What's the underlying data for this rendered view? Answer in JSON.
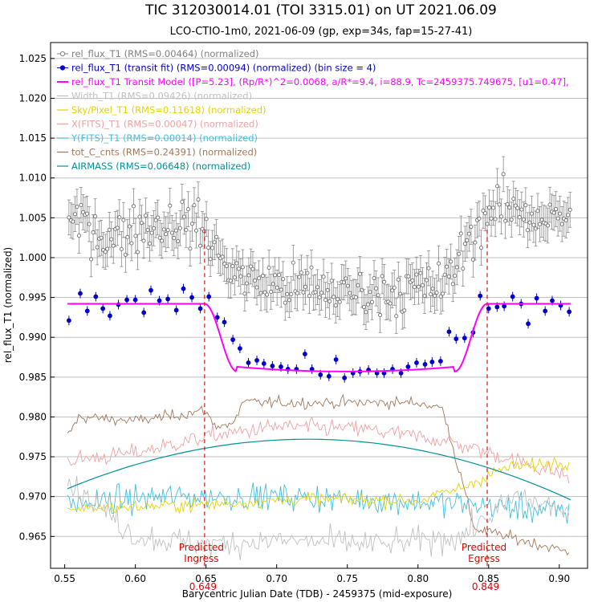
{
  "chart_data": {
    "type": "scatter",
    "title": "TIC 312030014.01 (TOI 3315.01) on UT 2021.06.09",
    "subtitle": "LCO-CTIO-1m0, 2021-06-09 (gp, exp=34s, fap=15-27-41)",
    "xlabel": "Barycentric Julian Date (TDB) - 2459375 (mid-exposure)",
    "ylabel": "rel_flux_T1 (normalized)",
    "xlim": [
      0.54,
      0.92
    ],
    "ylim": [
      0.961,
      1.027
    ],
    "x_ticks": [
      "0.55",
      "0.60",
      "0.65",
      "0.70",
      "0.75",
      "0.80",
      "0.85",
      "0.90"
    ],
    "y_ticks": [
      "0.965",
      "0.970",
      "0.975",
      "0.980",
      "0.985",
      "0.990",
      "0.995",
      "1.000",
      "1.005",
      "1.010",
      "1.015",
      "1.020",
      "1.025"
    ],
    "grid": true,
    "legend_position": "top-left",
    "legend": [
      {
        "label": "rel_flux_T1 (RMS=0.00464) (normalized)",
        "color": "#808080",
        "marker": "open-circle"
      },
      {
        "label": "rel_flux_T1 (transit fit) (RMS=0.00094) (normalized) (bin size = 4)",
        "color": "#0000c8",
        "marker": "filled-circle"
      },
      {
        "label": "rel_flux_T1 Transit Model ([P=5.23], (Rp/R*)^2=0.0068, a/R*=9.4, i=88.9, Tc=2459375.749675, [u1=0.47],",
        "color": "#ff00ff",
        "marker": "line"
      },
      {
        "label": "Width_T1 (RMS=0.09426) (normalized)",
        "color": "#c0c0c0",
        "marker": "line"
      },
      {
        "label": "Sky/Pixel_T1 (RMS=0.11618) (normalized)",
        "color": "#e6d200",
        "marker": "line"
      },
      {
        "label": "X(FITS)_T1 (RMS=0.00047) (normalized)",
        "color": "#f0a0a0",
        "marker": "line"
      },
      {
        "label": "Y(FITS)_T1 (RMS=0.00014) (normalized)",
        "color": "#40c0e0",
        "marker": "line"
      },
      {
        "label": "tot_C_cnts (RMS=0.24391) (normalized)",
        "color": "#a0785a",
        "marker": "line"
      },
      {
        "label": "AIRMASS (RMS=0.06648) (normalized)",
        "color": "#00909a",
        "marker": "line"
      }
    ],
    "annotations": [
      {
        "text_lines": [
          "Predicted",
          "Ingress"
        ],
        "x": 0.649,
        "value_label": "0.649",
        "color": "#e00000"
      },
      {
        "text_lines": [
          "Predicted",
          "Egress"
        ],
        "x": 0.849,
        "value_label": "0.849",
        "color": "#e00000"
      }
    ],
    "transit_model": {
      "baseline": 0.9942,
      "depth_level": 0.9857,
      "ingress_start": 0.649,
      "ingress_end": 0.672,
      "egress_start": 0.826,
      "egress_end": 0.849,
      "x_start": 0.552,
      "x_end": 0.908
    },
    "binned_points": [
      {
        "x": 0.553,
        "y": 0.9921
      },
      {
        "x": 0.561,
        "y": 0.9955
      },
      {
        "x": 0.566,
        "y": 0.9933
      },
      {
        "x": 0.572,
        "y": 0.9951
      },
      {
        "x": 0.577,
        "y": 0.9936
      },
      {
        "x": 0.582,
        "y": 0.9927
      },
      {
        "x": 0.588,
        "y": 0.9941
      },
      {
        "x": 0.594,
        "y": 0.9947
      },
      {
        "x": 0.6,
        "y": 0.9947
      },
      {
        "x": 0.606,
        "y": 0.9931
      },
      {
        "x": 0.611,
        "y": 0.9959
      },
      {
        "x": 0.617,
        "y": 0.9946
      },
      {
        "x": 0.623,
        "y": 0.9948
      },
      {
        "x": 0.629,
        "y": 0.9934
      },
      {
        "x": 0.634,
        "y": 0.9961
      },
      {
        "x": 0.64,
        "y": 0.995
      },
      {
        "x": 0.646,
        "y": 0.9936
      },
      {
        "x": 0.652,
        "y": 0.9951
      },
      {
        "x": 0.658,
        "y": 0.9925
      },
      {
        "x": 0.663,
        "y": 0.9919
      },
      {
        "x": 0.669,
        "y": 0.9897
      },
      {
        "x": 0.674,
        "y": 0.9886
      },
      {
        "x": 0.68,
        "y": 0.9868
      },
      {
        "x": 0.686,
        "y": 0.9871
      },
      {
        "x": 0.691,
        "y": 0.9867
      },
      {
        "x": 0.697,
        "y": 0.9864
      },
      {
        "x": 0.703,
        "y": 0.9863
      },
      {
        "x": 0.708,
        "y": 0.986
      },
      {
        "x": 0.714,
        "y": 0.986
      },
      {
        "x": 0.72,
        "y": 0.9879
      },
      {
        "x": 0.725,
        "y": 0.986
      },
      {
        "x": 0.731,
        "y": 0.9853
      },
      {
        "x": 0.737,
        "y": 0.9851
      },
      {
        "x": 0.742,
        "y": 0.9872
      },
      {
        "x": 0.748,
        "y": 0.9849
      },
      {
        "x": 0.754,
        "y": 0.9855
      },
      {
        "x": 0.759,
        "y": 0.9857
      },
      {
        "x": 0.765,
        "y": 0.9859
      },
      {
        "x": 0.771,
        "y": 0.9855
      },
      {
        "x": 0.776,
        "y": 0.9855
      },
      {
        "x": 0.782,
        "y": 0.986
      },
      {
        "x": 0.788,
        "y": 0.9855
      },
      {
        "x": 0.793,
        "y": 0.9863
      },
      {
        "x": 0.799,
        "y": 0.9868
      },
      {
        "x": 0.805,
        "y": 0.9866
      },
      {
        "x": 0.81,
        "y": 0.9869
      },
      {
        "x": 0.816,
        "y": 0.987
      },
      {
        "x": 0.822,
        "y": 0.9907
      },
      {
        "x": 0.827,
        "y": 0.9898
      },
      {
        "x": 0.833,
        "y": 0.9899
      },
      {
        "x": 0.839,
        "y": 0.9906
      },
      {
        "x": 0.844,
        "y": 0.9952
      },
      {
        "x": 0.85,
        "y": 0.9936
      },
      {
        "x": 0.856,
        "y": 0.9938
      },
      {
        "x": 0.861,
        "y": 0.9939
      },
      {
        "x": 0.867,
        "y": 0.9951
      },
      {
        "x": 0.873,
        "y": 0.9942
      },
      {
        "x": 0.878,
        "y": 0.9917
      },
      {
        "x": 0.884,
        "y": 0.9949
      },
      {
        "x": 0.89,
        "y": 0.9933
      },
      {
        "x": 0.895,
        "y": 0.9946
      },
      {
        "x": 0.901,
        "y": 0.994
      },
      {
        "x": 0.907,
        "y": 0.9932
      }
    ],
    "unbinned_trend": [
      {
        "x": 0.552,
        "y": 1.0035
      },
      {
        "x": 0.565,
        "y": 1.005
      },
      {
        "x": 0.58,
        "y": 1.002
      },
      {
        "x": 0.6,
        "y": 1.004
      },
      {
        "x": 0.62,
        "y": 1.004
      },
      {
        "x": 0.64,
        "y": 1.0045
      },
      {
        "x": 0.65,
        "y": 1.003
      },
      {
        "x": 0.66,
        "y": 1.0
      },
      {
        "x": 0.675,
        "y": 0.9975
      },
      {
        "x": 0.7,
        "y": 0.9965
      },
      {
        "x": 0.75,
        "y": 0.9955
      },
      {
        "x": 0.79,
        "y": 0.996
      },
      {
        "x": 0.82,
        "y": 0.9965
      },
      {
        "x": 0.835,
        "y": 1.002
      },
      {
        "x": 0.85,
        "y": 1.006
      },
      {
        "x": 0.87,
        "y": 1.006
      },
      {
        "x": 0.89,
        "y": 1.005
      },
      {
        "x": 0.908,
        "y": 1.005
      }
    ],
    "unbinned_scatter_sd": 0.0025,
    "airmass_curve": {
      "x_start": 0.552,
      "x_end": 0.908,
      "y_start": 0.971,
      "y_peak": 0.9772,
      "x_peak": 0.722,
      "y_end": 0.9696
    },
    "aux_series_trends": [
      {
        "name": "tot_C_cnts",
        "color": "#a0785a",
        "points": [
          {
            "x": 0.552,
            "y": 0.9775
          },
          {
            "x": 0.56,
            "y": 0.98
          },
          {
            "x": 0.6,
            "y": 0.9795
          },
          {
            "x": 0.65,
            "y": 0.9808
          },
          {
            "x": 0.655,
            "y": 0.979
          },
          {
            "x": 0.67,
            "y": 0.979
          },
          {
            "x": 0.675,
            "y": 0.9818
          },
          {
            "x": 0.8,
            "y": 0.9818
          },
          {
            "x": 0.818,
            "y": 0.981
          },
          {
            "x": 0.825,
            "y": 0.976
          },
          {
            "x": 0.84,
            "y": 0.966
          },
          {
            "x": 0.908,
            "y": 0.963
          }
        ]
      },
      {
        "name": "X(FITS)_T1",
        "color": "#f0a0a0",
        "points": [
          {
            "x": 0.552,
            "y": 0.9745
          },
          {
            "x": 0.6,
            "y": 0.9755
          },
          {
            "x": 0.65,
            "y": 0.9775
          },
          {
            "x": 0.7,
            "y": 0.9788
          },
          {
            "x": 0.76,
            "y": 0.9785
          },
          {
            "x": 0.82,
            "y": 0.977
          },
          {
            "x": 0.86,
            "y": 0.975
          },
          {
            "x": 0.908,
            "y": 0.9725
          }
        ]
      },
      {
        "name": "Y(FITS)_T1",
        "color": "#40c0e0",
        "points": [
          {
            "x": 0.552,
            "y": 0.969
          },
          {
            "x": 0.62,
            "y": 0.97
          },
          {
            "x": 0.7,
            "y": 0.97
          },
          {
            "x": 0.78,
            "y": 0.9695
          },
          {
            "x": 0.84,
            "y": 0.969
          },
          {
            "x": 0.908,
            "y": 0.968
          }
        ]
      },
      {
        "name": "Sky/Pixel_T1",
        "color": "#e6d200",
        "points": [
          {
            "x": 0.552,
            "y": 0.9685
          },
          {
            "x": 0.65,
            "y": 0.969
          },
          {
            "x": 0.72,
            "y": 0.9697
          },
          {
            "x": 0.8,
            "y": 0.9695
          },
          {
            "x": 0.83,
            "y": 0.971
          },
          {
            "x": 0.86,
            "y": 0.9735
          },
          {
            "x": 0.908,
            "y": 0.9745
          }
        ]
      },
      {
        "name": "Width_T1",
        "color": "#c0c0c0",
        "points": [
          {
            "x": 0.552,
            "y": 0.972
          },
          {
            "x": 0.6,
            "y": 0.965
          },
          {
            "x": 0.65,
            "y": 0.964
          },
          {
            "x": 0.7,
            "y": 0.9645
          },
          {
            "x": 0.78,
            "y": 0.964
          },
          {
            "x": 0.83,
            "y": 0.965
          },
          {
            "x": 0.87,
            "y": 0.97
          },
          {
            "x": 0.908,
            "y": 0.968
          }
        ]
      }
    ]
  }
}
